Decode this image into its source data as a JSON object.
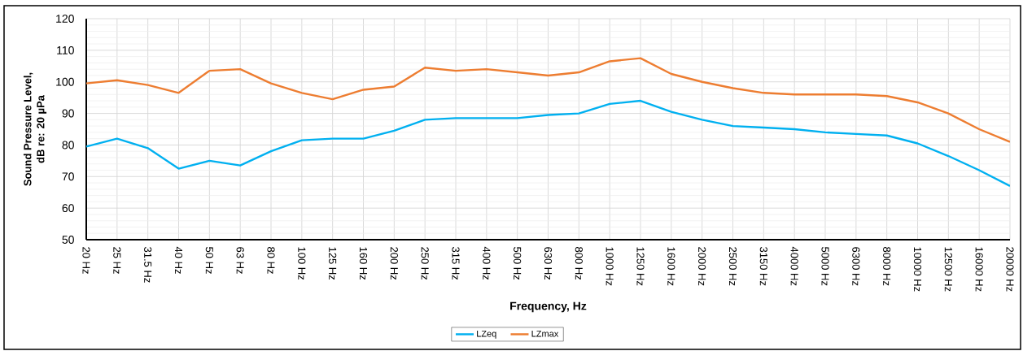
{
  "chart_data": {
    "type": "line",
    "xlabel": "Frequency, Hz",
    "ylabel": "Sound Pressure Level, dB re: 20 µPa",
    "categories": [
      "20 Hz",
      "25 Hz",
      "31.5 Hz",
      "40 Hz",
      "50 Hz",
      "63 Hz",
      "80 Hz",
      "100 Hz",
      "125 Hz",
      "160 Hz",
      "200 Hz",
      "250 Hz",
      "315 Hz",
      "400 Hz",
      "500 Hz",
      "630 Hz",
      "800 Hz",
      "1000 Hz",
      "1250 Hz",
      "1600 Hz",
      "2000 Hz",
      "2500 Hz",
      "3150 Hz",
      "4000 Hz",
      "5000 Hz",
      "6300 Hz",
      "8000 Hz",
      "10000 Hz",
      "12500 Hz",
      "16000 Hz",
      "20000 Hz"
    ],
    "series": [
      {
        "name": "LZeq",
        "color": "#00b0f0",
        "values": [
          79.5,
          82,
          79,
          72.5,
          75,
          73.5,
          78,
          81.5,
          82,
          82,
          84.5,
          88,
          88.5,
          88.5,
          88.5,
          89.5,
          90,
          93,
          94,
          90.5,
          88,
          86,
          85.5,
          85,
          84,
          83.5,
          83,
          80.5,
          76.5,
          72,
          67
        ]
      },
      {
        "name": "LZmax",
        "color": "#ed7d31",
        "values": [
          99.5,
          100.5,
          99,
          96.5,
          103.5,
          104,
          99.5,
          96.5,
          94.5,
          97.5,
          98.5,
          104.5,
          103.5,
          104,
          103,
          102,
          103,
          106.5,
          107.5,
          102.5,
          100,
          98,
          96.5,
          96,
          96,
          96,
          95.5,
          93.5,
          90,
          85,
          81
        ]
      }
    ],
    "ylim": [
      50,
      120
    ],
    "yticks": [
      50,
      60,
      70,
      80,
      90,
      100,
      110,
      120
    ],
    "grid": true,
    "legend": "bottom"
  }
}
